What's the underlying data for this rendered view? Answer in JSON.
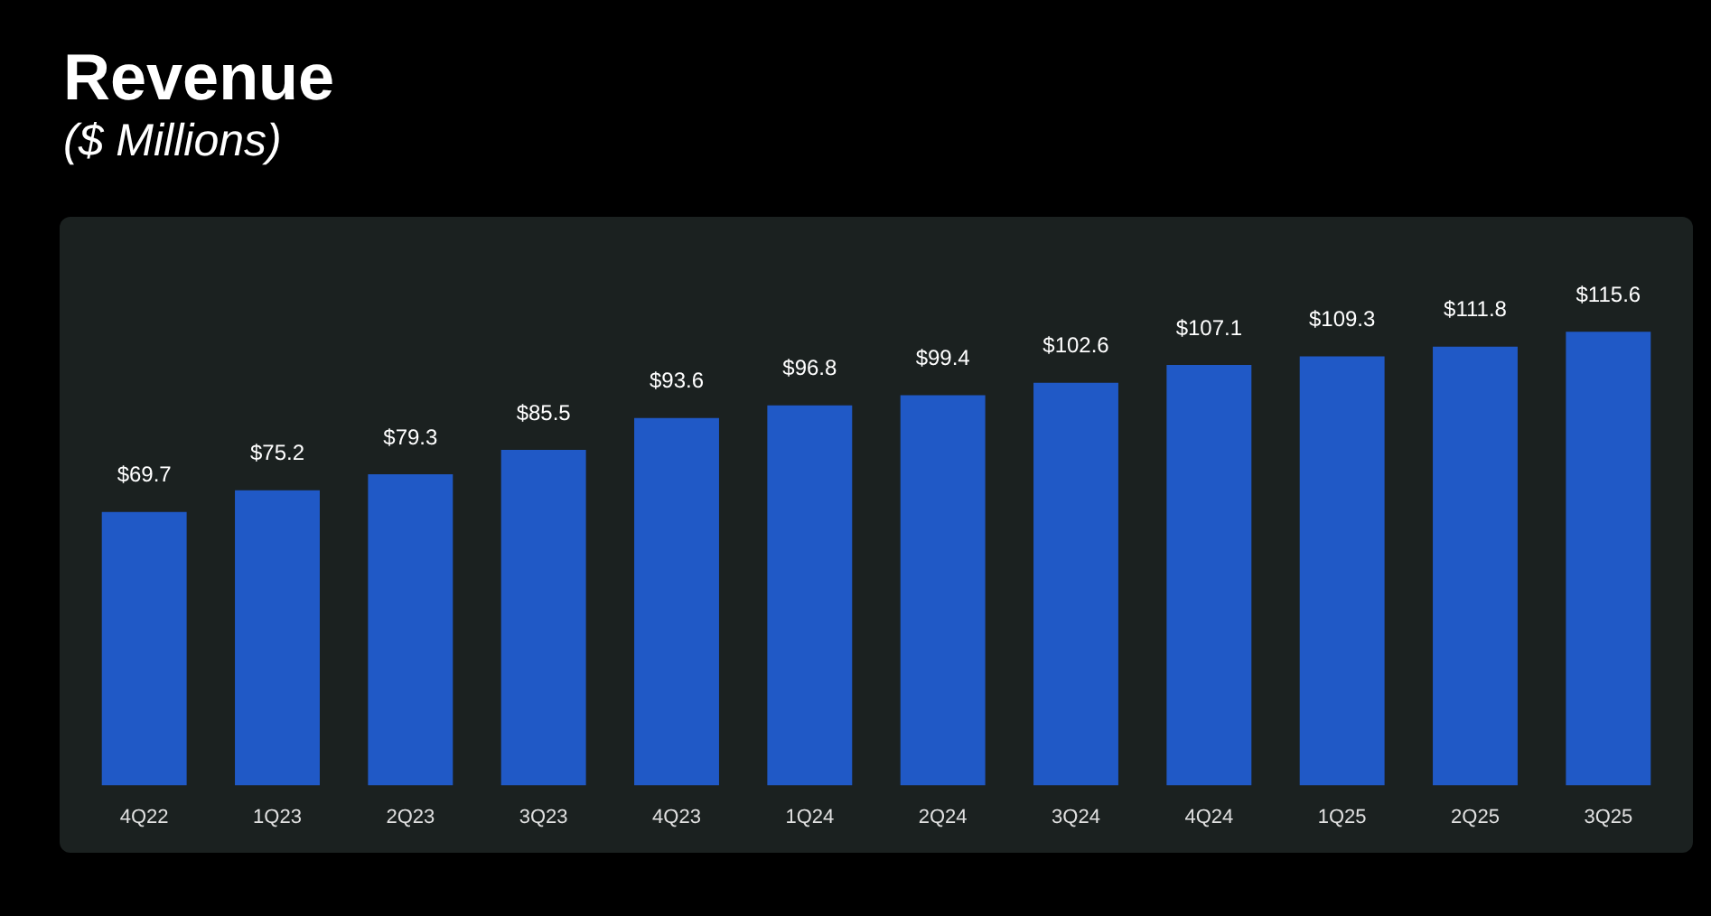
{
  "chart_data": {
    "type": "bar",
    "title": "Revenue",
    "subtitle": "($ Millions)",
    "categories": [
      "4Q22",
      "1Q23",
      "2Q23",
      "3Q23",
      "4Q23",
      "1Q24",
      "2Q24",
      "3Q24",
      "4Q24",
      "1Q25",
      "2Q25",
      "3Q25"
    ],
    "values": [
      69.7,
      75.2,
      79.3,
      85.5,
      93.6,
      96.8,
      99.4,
      102.6,
      107.1,
      109.3,
      111.8,
      115.6
    ],
    "value_labels": [
      "$69.7",
      "$75.2",
      "$79.3",
      "$85.5",
      "$93.6",
      "$96.8",
      "$99.4",
      "$102.6",
      "$107.1",
      "$109.3",
      "$111.8",
      "$115.6"
    ],
    "color": "#2059c6",
    "tick_labels": "x"
  }
}
